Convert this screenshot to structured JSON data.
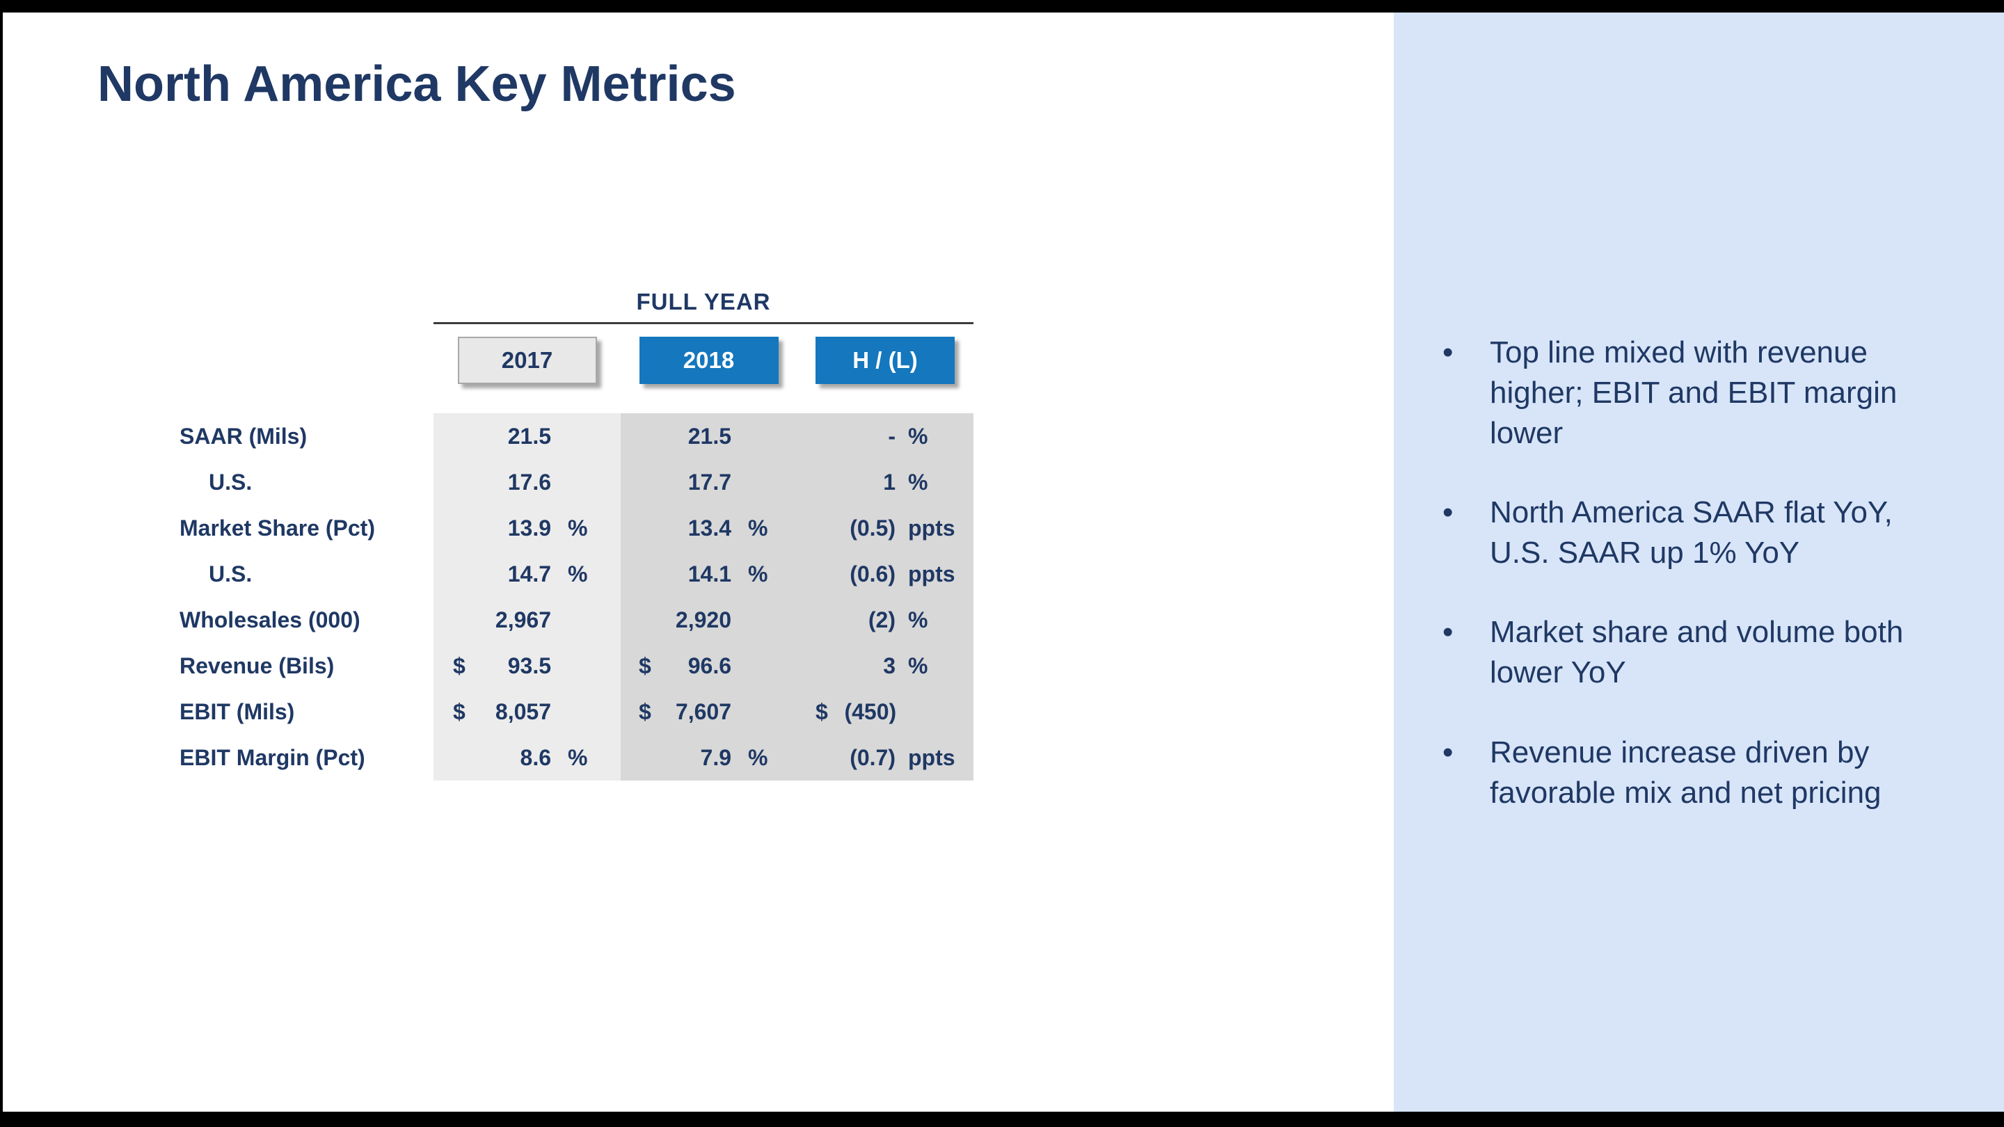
{
  "title": "North America Key Metrics",
  "table": {
    "group_header": "FULL YEAR",
    "columns": [
      "2017",
      "2018",
      "H / (L)"
    ],
    "rows": [
      {
        "label": "SAAR (Mils)",
        "indent": false,
        "c2017": {
          "d": "",
          "v": "21.5",
          "u": ""
        },
        "c2018": {
          "d": "",
          "v": "21.5",
          "u": ""
        },
        "chl": {
          "d": "",
          "v": "-",
          "u": "%"
        }
      },
      {
        "label": "U.S.",
        "indent": true,
        "c2017": {
          "d": "",
          "v": "17.6",
          "u": ""
        },
        "c2018": {
          "d": "",
          "v": "17.7",
          "u": ""
        },
        "chl": {
          "d": "",
          "v": "1",
          "u": "%"
        }
      },
      {
        "label": "Market Share (Pct)",
        "indent": false,
        "c2017": {
          "d": "",
          "v": "13.9",
          "u": "%"
        },
        "c2018": {
          "d": "",
          "v": "13.4",
          "u": "%"
        },
        "chl": {
          "d": "",
          "v": "(0.5)",
          "u": "ppts"
        }
      },
      {
        "label": "U.S.",
        "indent": true,
        "c2017": {
          "d": "",
          "v": "14.7",
          "u": "%"
        },
        "c2018": {
          "d": "",
          "v": "14.1",
          "u": "%"
        },
        "chl": {
          "d": "",
          "v": "(0.6)",
          "u": "ppts"
        }
      },
      {
        "label": "Wholesales (000)",
        "indent": false,
        "c2017": {
          "d": "",
          "v": "2,967",
          "u": ""
        },
        "c2018": {
          "d": "",
          "v": "2,920",
          "u": ""
        },
        "chl": {
          "d": "",
          "v": "(2)",
          "u": "%"
        }
      },
      {
        "label": "Revenue (Bils)",
        "indent": false,
        "c2017": {
          "d": "$",
          "v": "93.5",
          "u": ""
        },
        "c2018": {
          "d": "$",
          "v": "96.6",
          "u": ""
        },
        "chl": {
          "d": "",
          "v": "3",
          "u": "%"
        }
      },
      {
        "label": "EBIT (Mils)",
        "indent": false,
        "c2017": {
          "d": "$",
          "v": "8,057",
          "u": ""
        },
        "c2018": {
          "d": "$",
          "v": "7,607",
          "u": ""
        },
        "chl": {
          "d": "$",
          "v": "(450)",
          "u": ""
        }
      },
      {
        "label": "EBIT Margin (Pct)",
        "indent": false,
        "c2017": {
          "d": "",
          "v": "8.6",
          "u": "%"
        },
        "c2018": {
          "d": "",
          "v": "7.9",
          "u": "%"
        },
        "chl": {
          "d": "",
          "v": "(0.7)",
          "u": "ppts"
        }
      }
    ]
  },
  "notes": {
    "bullet_char": "•",
    "bullets": [
      "Top line mixed with revenue higher; EBIT and EBIT margin lower",
      "North America SAAR flat YoY, U.S. SAAR up 1% YoY",
      "Market share and volume both lower YoY",
      "Revenue increase driven by favorable mix and net pricing"
    ]
  },
  "colors": {
    "navy": "#1f3864",
    "accent_blue": "#1577bd",
    "panel_blue": "#d8e5f8",
    "col1_bg": "#ececec",
    "col2_bg": "#d8d8d8",
    "bar_black": "#000000"
  }
}
